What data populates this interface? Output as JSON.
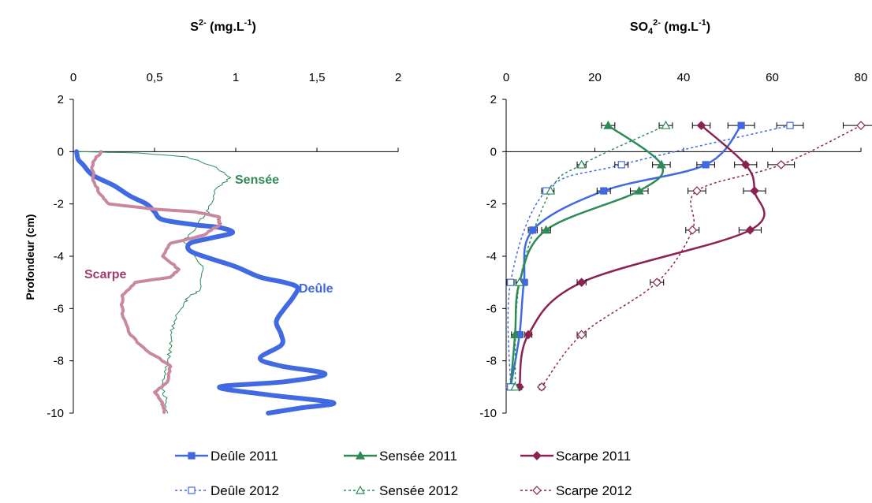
{
  "chart_data": [
    {
      "id": "sulfide",
      "type": "line",
      "title": "S2- (mg.L-1)",
      "title_parts": {
        "base": "S",
        "sup1": "2-",
        "middle": " (mg.L",
        "sup2": "-1",
        "end": ")"
      },
      "ylabel": "Profondeur (cm)",
      "xlabel": "",
      "x_axis_position": "top",
      "xlim": [
        0,
        2
      ],
      "ylim": [
        -10,
        2
      ],
      "x_ticks": [
        0,
        0.5,
        1,
        1.5,
        2
      ],
      "x_tick_labels": [
        "0",
        "0,5",
        "1",
        "1,5",
        "2"
      ],
      "y_ticks": [
        2,
        0,
        -2,
        -4,
        -6,
        -8,
        -10
      ],
      "y_tick_labels": [
        "2",
        "0",
        "-2",
        "-4",
        "-6",
        "-8",
        "-10"
      ],
      "grid": false,
      "series": [
        {
          "name": "Sensée",
          "color": "#2e8b57",
          "style": "thin",
          "points": [
            [
              0.03,
              0
            ],
            [
              0.4,
              -0.05
            ],
            [
              0.7,
              -0.2
            ],
            [
              0.88,
              -0.6
            ],
            [
              0.97,
              -1.0
            ],
            [
              0.88,
              -1.4
            ],
            [
              0.85,
              -2.0
            ],
            [
              0.82,
              -2.4
            ],
            [
              0.78,
              -2.6
            ],
            [
              0.75,
              -3.0
            ],
            [
              0.68,
              -3.4
            ],
            [
              0.72,
              -3.8
            ],
            [
              0.8,
              -4.5
            ],
            [
              0.78,
              -5.3
            ],
            [
              0.72,
              -5.5
            ],
            [
              0.68,
              -5.8
            ],
            [
              0.62,
              -6.5
            ],
            [
              0.6,
              -7.0
            ],
            [
              0.6,
              -7.5
            ],
            [
              0.58,
              -8.0
            ],
            [
              0.57,
              -8.5
            ],
            [
              0.55,
              -9.0
            ],
            [
              0.57,
              -9.5
            ],
            [
              0.58,
              -10
            ]
          ]
        },
        {
          "name": "Deûle",
          "color": "#4169e1",
          "style": "thick",
          "points": [
            [
              0.02,
              0
            ],
            [
              0.03,
              -0.3
            ],
            [
              0.06,
              -0.5
            ],
            [
              0.12,
              -0.9
            ],
            [
              0.25,
              -1.3
            ],
            [
              0.35,
              -1.7
            ],
            [
              0.45,
              -2.0
            ],
            [
              0.5,
              -2.3
            ],
            [
              0.55,
              -2.6
            ],
            [
              0.75,
              -2.8
            ],
            [
              0.9,
              -2.9
            ],
            [
              0.98,
              -3.1
            ],
            [
              0.85,
              -3.3
            ],
            [
              0.72,
              -3.5
            ],
            [
              0.72,
              -3.8
            ],
            [
              0.85,
              -4.1
            ],
            [
              1.0,
              -4.4
            ],
            [
              1.15,
              -4.8
            ],
            [
              1.3,
              -5.0
            ],
            [
              1.38,
              -5.2
            ],
            [
              1.35,
              -5.6
            ],
            [
              1.3,
              -6.0
            ],
            [
              1.25,
              -6.5
            ],
            [
              1.28,
              -7.0
            ],
            [
              1.28,
              -7.4
            ],
            [
              1.15,
              -7.9
            ],
            [
              1.28,
              -8.2
            ],
            [
              1.55,
              -8.5
            ],
            [
              1.3,
              -8.8
            ],
            [
              0.9,
              -9.0
            ],
            [
              1.2,
              -9.3
            ],
            [
              1.6,
              -9.6
            ],
            [
              1.4,
              -9.8
            ],
            [
              1.2,
              -10
            ]
          ]
        },
        {
          "name": "Scarpe",
          "color": "#c9889e",
          "style": "dotted-band",
          "points": [
            [
              0.17,
              0
            ],
            [
              0.12,
              -0.4
            ],
            [
              0.12,
              -1.0
            ],
            [
              0.16,
              -1.6
            ],
            [
              0.22,
              -2.0
            ],
            [
              0.5,
              -2.2
            ],
            [
              0.75,
              -2.3
            ],
            [
              0.9,
              -2.5
            ],
            [
              0.9,
              -2.8
            ],
            [
              0.8,
              -3.2
            ],
            [
              0.6,
              -3.5
            ],
            [
              0.55,
              -4.0
            ],
            [
              0.65,
              -4.5
            ],
            [
              0.6,
              -4.8
            ],
            [
              0.38,
              -5.0
            ],
            [
              0.3,
              -5.5
            ],
            [
              0.3,
              -6.2
            ],
            [
              0.35,
              -7.0
            ],
            [
              0.45,
              -7.6
            ],
            [
              0.6,
              -8.2
            ],
            [
              0.58,
              -8.8
            ],
            [
              0.5,
              -9.2
            ],
            [
              0.55,
              -9.6
            ],
            [
              0.56,
              -10
            ]
          ]
        }
      ],
      "annotations": [
        {
          "text": "Sensée",
          "color": "#2e8b57"
        },
        {
          "text": "Scarpe",
          "color": "#a33a6a"
        },
        {
          "text": "Deûle",
          "color": "#4169e1"
        }
      ]
    },
    {
      "id": "sulfate",
      "type": "line",
      "title": "SO42- (mg.L-1)",
      "title_parts": {
        "base": "SO",
        "sub": "4",
        "sup1": "2-",
        "middle": " (mg.L",
        "sup2": "-1",
        "end": ")"
      },
      "ylabel": "",
      "xlabel": "",
      "x_axis_position": "top",
      "xlim": [
        0,
        80
      ],
      "ylim": [
        -10,
        2
      ],
      "x_ticks": [
        0,
        20,
        40,
        60,
        80
      ],
      "x_tick_labels": [
        "0",
        "20",
        "40",
        "60",
        "80"
      ],
      "y_ticks": [
        2,
        0,
        -2,
        -4,
        -6,
        -8,
        -10
      ],
      "y_tick_labels": [
        "2",
        "0",
        "-2",
        "-4",
        "-6",
        "-8",
        "-10"
      ],
      "grid": false,
      "error_bars": "horizontal",
      "series": [
        {
          "name": "Deûle 2011",
          "color": "#4169e1",
          "style": "solid",
          "marker": "square",
          "x": [
            53,
            45,
            22,
            6,
            4,
            3,
            1
          ],
          "y": [
            1,
            -0.5,
            -1.5,
            -3,
            -5,
            -7,
            -9
          ],
          "xerr": [
            3,
            2,
            1.5,
            1,
            0.8,
            0.8,
            0.5
          ]
        },
        {
          "name": "Sensée 2011",
          "color": "#2e8b57",
          "style": "solid",
          "marker": "triangle",
          "x": [
            23,
            35,
            30,
            9,
            3,
            2,
            1
          ],
          "y": [
            1,
            -0.5,
            -1.5,
            -3,
            -5,
            -7,
            -9
          ],
          "xerr": [
            1.5,
            2,
            2,
            1,
            0.8,
            0.8,
            0.5
          ]
        },
        {
          "name": "Scarpe 2011",
          "color": "#8b2252",
          "style": "solid",
          "marker": "diamond",
          "x": [
            44,
            54,
            56,
            55,
            17,
            5,
            3
          ],
          "y": [
            1,
            -0.5,
            -1.5,
            -3,
            -5,
            -7,
            -9
          ],
          "xerr": [
            2,
            2.5,
            2.5,
            2.5,
            1,
            0.8,
            0.5
          ]
        },
        {
          "name": "Deûle 2012",
          "color": "#4169e1",
          "style": "dotted",
          "marker": "square-open",
          "x": [
            64,
            26,
            9,
            1,
            1
          ],
          "y": [
            1,
            -0.5,
            -1.5,
            -5,
            -9
          ],
          "xerr": [
            3,
            1.5,
            1,
            0.8,
            0.5
          ]
        },
        {
          "name": "Sensée 2012",
          "color": "#2e8b57",
          "style": "dotted",
          "marker": "triangle-open",
          "x": [
            36,
            17,
            10,
            3,
            2
          ],
          "y": [
            1,
            -0.5,
            -1.5,
            -5,
            -9
          ],
          "xerr": [
            1.5,
            1,
            0.8,
            0.8,
            0.5
          ]
        },
        {
          "name": "Scarpe 2012",
          "color": "#8b2252",
          "style": "dotted",
          "marker": "diamond-open",
          "x": [
            80,
            62,
            43,
            42,
            34,
            17,
            8
          ],
          "y": [
            1,
            -0.5,
            -1.5,
            -3,
            -5,
            -7,
            -9
          ],
          "xerr": [
            4,
            3,
            2,
            1.5,
            1.5,
            1,
            0.5
          ]
        }
      ]
    }
  ],
  "legend": {
    "position": "bottom",
    "entries": [
      "Deûle 2011",
      "Sensée 2011",
      "Scarpe 2011",
      "Deûle 2012",
      "Sensée 2012",
      "Scarpe 2012"
    ]
  }
}
